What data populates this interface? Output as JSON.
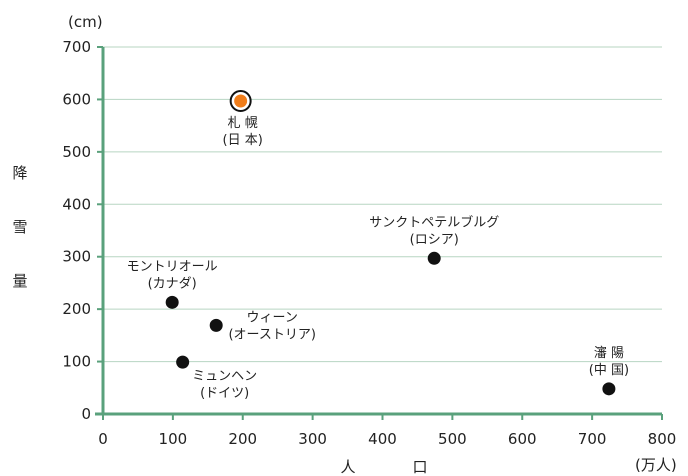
{
  "chart_data": {
    "type": "scatter",
    "ylabel": "降雪量",
    "xlabel": "人口",
    "yunit": "(cm)",
    "xunit": "(万人)",
    "xlim": [
      0,
      800
    ],
    "ylim": [
      0,
      700
    ],
    "xticks": [
      0,
      100,
      200,
      300,
      400,
      500,
      600,
      700,
      800
    ],
    "yticks": [
      0,
      100,
      200,
      300,
      400,
      500,
      600,
      700
    ],
    "grid": "horizontal",
    "points": [
      {
        "name": "札 幌",
        "country": "(日 本)",
        "x": 197,
        "y": 597,
        "highlight": true,
        "label_pos": "below"
      },
      {
        "name": "サンクトペテルブルグ",
        "country": "(ロシア)",
        "x": 474,
        "y": 297,
        "highlight": false,
        "label_pos": "above"
      },
      {
        "name": "モントリオール",
        "country": "(カナダ)",
        "x": 99,
        "y": 213,
        "highlight": false,
        "label_pos": "above"
      },
      {
        "name": "ウィーン",
        "country": "(オーストリア)",
        "x": 162,
        "y": 169,
        "highlight": false,
        "label_pos": "right"
      },
      {
        "name": "ミュンヘン",
        "country": "(ドイツ)",
        "x": 114,
        "y": 99,
        "highlight": false,
        "label_pos": "below-right"
      },
      {
        "name": "瀋 陽",
        "country": "(中 国)",
        "x": 724,
        "y": 48,
        "highlight": false,
        "label_pos": "above"
      }
    ],
    "colors": {
      "axis": "#5aa17c",
      "grid": "#b7d5c2",
      "point": "#111111",
      "highlight": "#f07d1a"
    }
  }
}
